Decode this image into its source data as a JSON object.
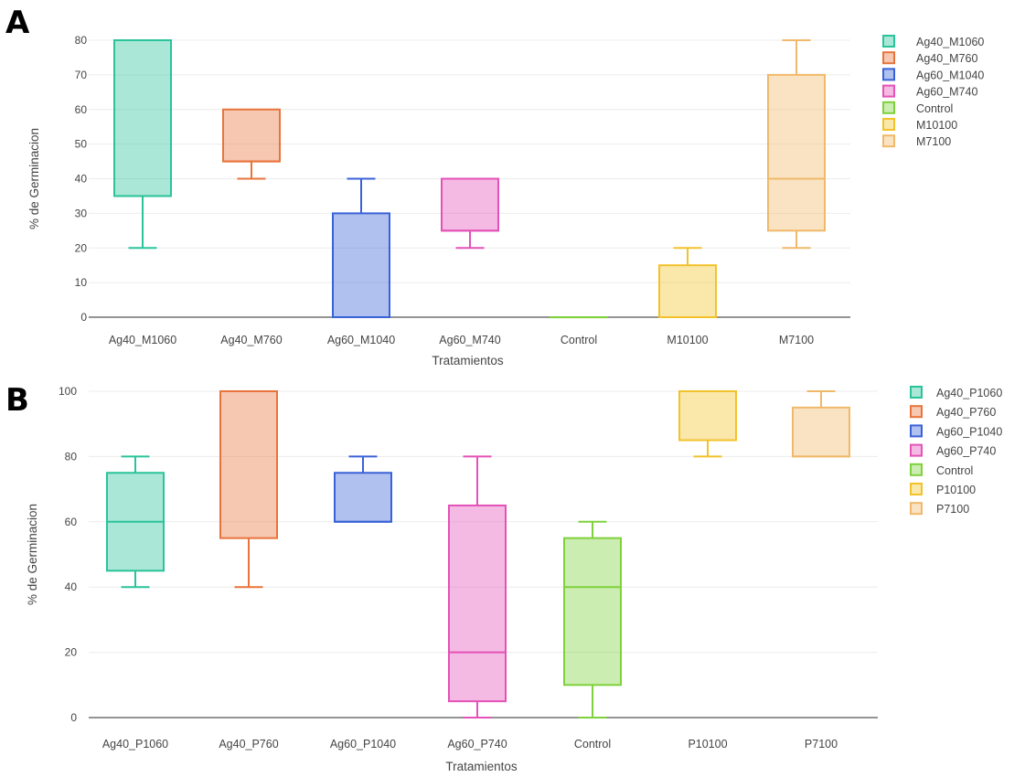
{
  "chart_data": [
    {
      "panel": "A",
      "type": "box",
      "xlabel": "Tratamientos",
      "ylabel": "% de Germinacion",
      "ylim": [
        0,
        80
      ],
      "yticks": [
        0,
        10,
        20,
        30,
        40,
        50,
        60,
        70,
        80
      ],
      "grid": true,
      "legend_position": "right",
      "categories": [
        "Ag40_M1060",
        "Ag40_M760",
        "Ag60_M1040",
        "Ag60_M740",
        "Control",
        "M10100",
        "M7100"
      ],
      "series": [
        {
          "name": "Ag40_M1060",
          "color": "#2bc39a",
          "min": 20,
          "q1": 35,
          "median": 35,
          "q3": 80,
          "max": 80
        },
        {
          "name": "Ag40_M760",
          "color": "#e8743b",
          "min": 40,
          "q1": 45,
          "median": 45,
          "q3": 60,
          "max": 60
        },
        {
          "name": "Ag60_M1040",
          "color": "#3a62d8",
          "min": 0,
          "q1": 0,
          "median": 0,
          "q3": 30,
          "max": 40
        },
        {
          "name": "Ag60_M740",
          "color": "#e452b8",
          "min": 20,
          "q1": 25,
          "median": 25,
          "q3": 40,
          "max": 40
        },
        {
          "name": "Control",
          "color": "#7fd13b",
          "min": 0,
          "q1": 0,
          "median": 0,
          "q3": 0,
          "max": 0
        },
        {
          "name": "M10100",
          "color": "#f2c22b",
          "min": 0,
          "q1": 0,
          "median": 0,
          "q3": 15,
          "max": 20
        },
        {
          "name": "M7100",
          "color": "#f0b96a",
          "min": 20,
          "q1": 25,
          "median": 40,
          "q3": 70,
          "max": 80
        }
      ]
    },
    {
      "panel": "B",
      "type": "box",
      "xlabel": "Tratamientos",
      "ylabel": "% de Germinacion",
      "ylim": [
        0,
        100
      ],
      "yticks": [
        0,
        20,
        40,
        60,
        80,
        100
      ],
      "grid": true,
      "legend_position": "right",
      "categories": [
        "Ag40_P1060",
        "Ag40_P760",
        "Ag60_P1040",
        "Ag60_P740",
        "Control",
        "P10100",
        "P7100"
      ],
      "series": [
        {
          "name": "Ag40_P1060",
          "color": "#2bc39a",
          "min": 40,
          "q1": 45,
          "median": 60,
          "q3": 75,
          "max": 80
        },
        {
          "name": "Ag40_P760",
          "color": "#e8743b",
          "min": 40,
          "q1": 55,
          "median": 100,
          "q3": 100,
          "max": 100
        },
        {
          "name": "Ag60_P1040",
          "color": "#3a62d8",
          "min": 60,
          "q1": 60,
          "median": 60,
          "q3": 75,
          "max": 80
        },
        {
          "name": "Ag60_P740",
          "color": "#e452b8",
          "min": 0,
          "q1": 5,
          "median": 20,
          "q3": 65,
          "max": 80
        },
        {
          "name": "Control",
          "color": "#7fd13b",
          "min": 0,
          "q1": 10,
          "median": 40,
          "q3": 55,
          "max": 60
        },
        {
          "name": "P10100",
          "color": "#f2c22b",
          "min": 80,
          "q1": 85,
          "median": 100,
          "q3": 100,
          "max": 100
        },
        {
          "name": "P7100",
          "color": "#f0b96a",
          "min": 80,
          "q1": 80,
          "median": 80,
          "q3": 95,
          "max": 100
        }
      ]
    }
  ]
}
